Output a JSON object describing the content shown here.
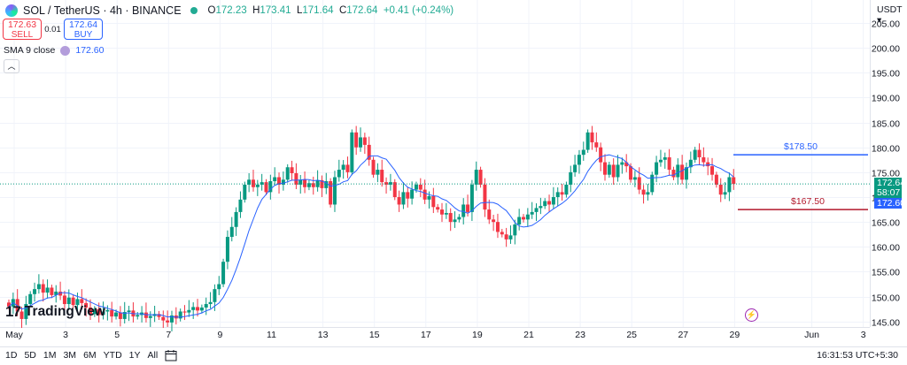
{
  "header": {
    "title": "SOL / TetherUS · 4h · BINANCE",
    "o_label": "O",
    "o": "172.23",
    "h_label": "H",
    "h": "173.41",
    "l_label": "L",
    "l": "171.64",
    "c_label": "C",
    "c": "172.64",
    "change": "+0.41 (+0.24%)"
  },
  "trade": {
    "sell_price": "172.63",
    "sell_label": "SELL",
    "spread": "0.01",
    "buy_price": "172.64",
    "buy_label": "BUY"
  },
  "indicator": {
    "label": "SMA 9 close",
    "value": "172.60"
  },
  "logo": {
    "text": "TradingView",
    "mark": "17"
  },
  "currency": "USDT ▾",
  "price_badges": {
    "last": "172.64",
    "countdown": "58:07",
    "sma": "172.60"
  },
  "levels": [
    {
      "label": "$178.50",
      "value": 178.5,
      "color": "#2962ff"
    },
    {
      "label": "$167.50",
      "value": 167.5,
      "color": "#b2182b"
    }
  ],
  "ranges": [
    "1D",
    "5D",
    "1M",
    "3M",
    "6M",
    "YTD",
    "1Y",
    "All"
  ],
  "clock": "16:31:53 UTC+5:30",
  "colors": {
    "up": "#089981",
    "down": "#f23645",
    "sma": "#2962ff",
    "badge_last": "#089981",
    "badge_sma": "#2962ff"
  },
  "chart_data": {
    "type": "candlestick",
    "symbol": "SOL / TetherUS",
    "interval": "4h",
    "y_ticks": [
      145,
      150,
      155,
      160,
      165,
      170,
      175,
      180,
      185,
      190,
      195,
      200,
      205
    ],
    "ylim": [
      142,
      207
    ],
    "x_tick_labels": [
      {
        "label": "May",
        "day": 1
      },
      {
        "label": "3",
        "day": 3
      },
      {
        "label": "5",
        "day": 5
      },
      {
        "label": "7",
        "day": 7
      },
      {
        "label": "9",
        "day": 9
      },
      {
        "label": "11",
        "day": 11
      },
      {
        "label": "13",
        "day": 13
      },
      {
        "label": "15",
        "day": 15
      },
      {
        "label": "17",
        "day": 17
      },
      {
        "label": "19",
        "day": 19
      },
      {
        "label": "21",
        "day": 21
      },
      {
        "label": "23",
        "day": 23
      },
      {
        "label": "25",
        "day": 25
      },
      {
        "label": "27",
        "day": 27
      },
      {
        "label": "29",
        "day": 29
      },
      {
        "label": "Jun",
        "day": 32
      },
      {
        "label": "3",
        "day": 34
      }
    ],
    "candles_4h_close": [
      148.0,
      149.5,
      147.0,
      145.5,
      148.5,
      150.5,
      151.5,
      152.5,
      150.8,
      151.8,
      150.3,
      151.0,
      150.2,
      148.5,
      149.8,
      148.3,
      149.5,
      148.7,
      147.8,
      146.5,
      147.5,
      146.3,
      147.0,
      147.3,
      146.0,
      146.8,
      145.5,
      146.9,
      147.2,
      146.0,
      146.3,
      146.8,
      145.7,
      146.1,
      146.5,
      145.9,
      145.2,
      144.8,
      146.2,
      145.6,
      147.0,
      146.8,
      147.3,
      147.9,
      147.2,
      147.8,
      148.5,
      148.9,
      151.5,
      152.5,
      157.0,
      162.0,
      164.0,
      167.0,
      169.5,
      172.5,
      173.5,
      172.0,
      172.5,
      173.0,
      171.0,
      173.2,
      174.0,
      172.5,
      173.5,
      176.0,
      174.8,
      172.5,
      173.5,
      172.0,
      172.8,
      172.0,
      173.4,
      171.8,
      173.2,
      168.5,
      174.0,
      175.5,
      176.5,
      175.0,
      183.0,
      180.0,
      182.0,
      180.5,
      177.5,
      174.5,
      175.5,
      173.0,
      172.5,
      173.0,
      170.0,
      168.5,
      171.0,
      169.7,
      171.5,
      172.5,
      171.5,
      169.5,
      170.2,
      168.0,
      167.5,
      166.5,
      166.8,
      165.0,
      165.5,
      166.0,
      168.5,
      167.0,
      172.5,
      175.5,
      172.5,
      167.5,
      165.5,
      165.0,
      163.0,
      162.5,
      161.5,
      162.3,
      164.5,
      166.0,
      165.5,
      166.5,
      167.0,
      167.8,
      168.2,
      169.2,
      168.5,
      170.0,
      171.0,
      170.5,
      172.5,
      175.0,
      176.5,
      178.5,
      179.5,
      183.0,
      181.0,
      180.0,
      177.0,
      174.5,
      176.5,
      174.0,
      176.5,
      177.0,
      176.2,
      173.5,
      174.0,
      171.5,
      170.5,
      171.0,
      174.5,
      177.0,
      177.5,
      178.0,
      175.5,
      174.0,
      176.5,
      173.5,
      176.0,
      177.5,
      179.5,
      178.0,
      177.0,
      176.2,
      174.5,
      172.5,
      170.5,
      171.0,
      174.0,
      172.64
    ]
  }
}
